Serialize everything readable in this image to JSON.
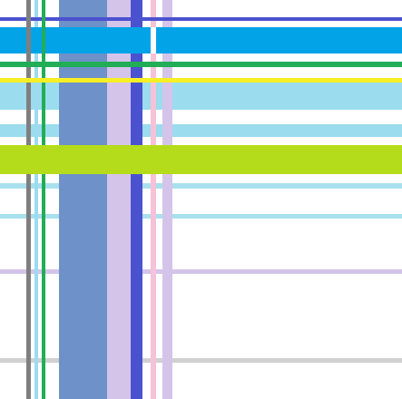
{
  "colors": {
    "background": "#ffffff",
    "cyan": "#03a3e8",
    "light_cyan": "#9bdcef",
    "pale_cyan": "#a9e0ee",
    "lime": "#b5dc1a",
    "green": "#22ad57",
    "yellow": "#f6ef25",
    "blue": "#4b52d0",
    "steel_blue": "#6d91c8",
    "lavender": "#d4c4ea",
    "pink": "#f5c2d8",
    "grey": "#7f7f7f",
    "light_grey": "#d0d0d0"
  }
}
